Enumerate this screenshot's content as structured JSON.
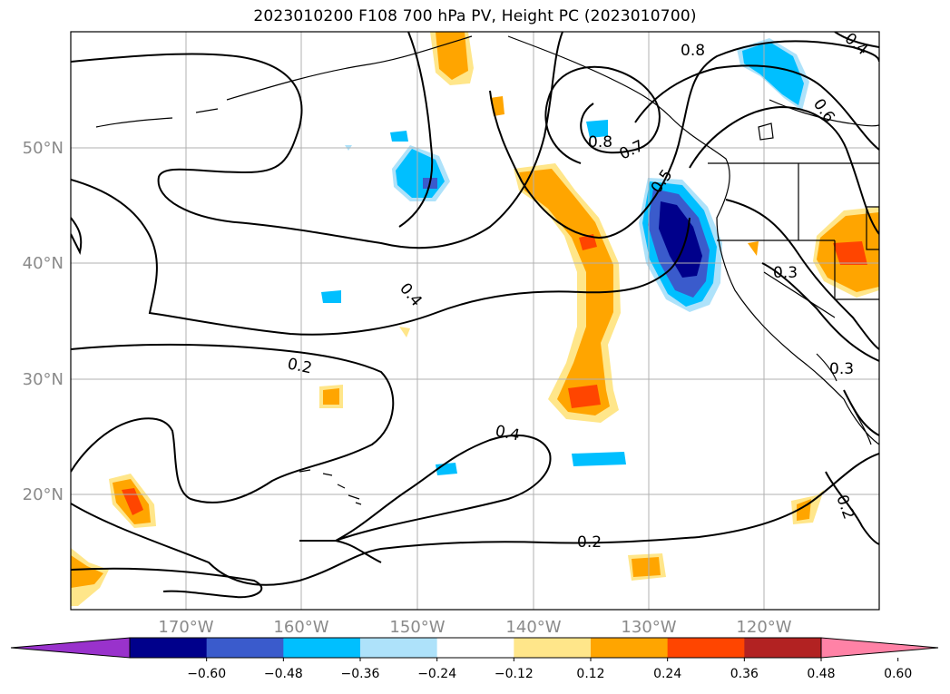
{
  "title": "2023010200 F108 700 hPa PV, Height PC (2023010700)",
  "map": {
    "lon_ticks": [
      "170°W",
      "160°W",
      "150°W",
      "140°W",
      "130°W",
      "120°W"
    ],
    "lat_ticks": [
      "50°N",
      "40°N",
      "30°N",
      "20°N"
    ],
    "contour_labels": [
      "0.8",
      "0.8",
      "0.7",
      "0.6",
      "0.5",
      "0.4",
      "0.4",
      "0.3",
      "0.3",
      "0.2",
      "0.2",
      "0.2",
      "0.4"
    ]
  },
  "colorbar": {
    "tick_labels": [
      "−0.60",
      "−0.48",
      "−0.36",
      "−0.24",
      "−0.12",
      "0.12",
      "0.24",
      "0.36",
      "0.48",
      "0.60"
    ],
    "colors": [
      "#9932cc",
      "#00008b",
      "#3a5bcc",
      "#00bfff",
      "#aee2fa",
      "#ffffff",
      "#ffe68a",
      "#ffa500",
      "#ff4500",
      "#b22222",
      "#ff82a6"
    ]
  }
}
